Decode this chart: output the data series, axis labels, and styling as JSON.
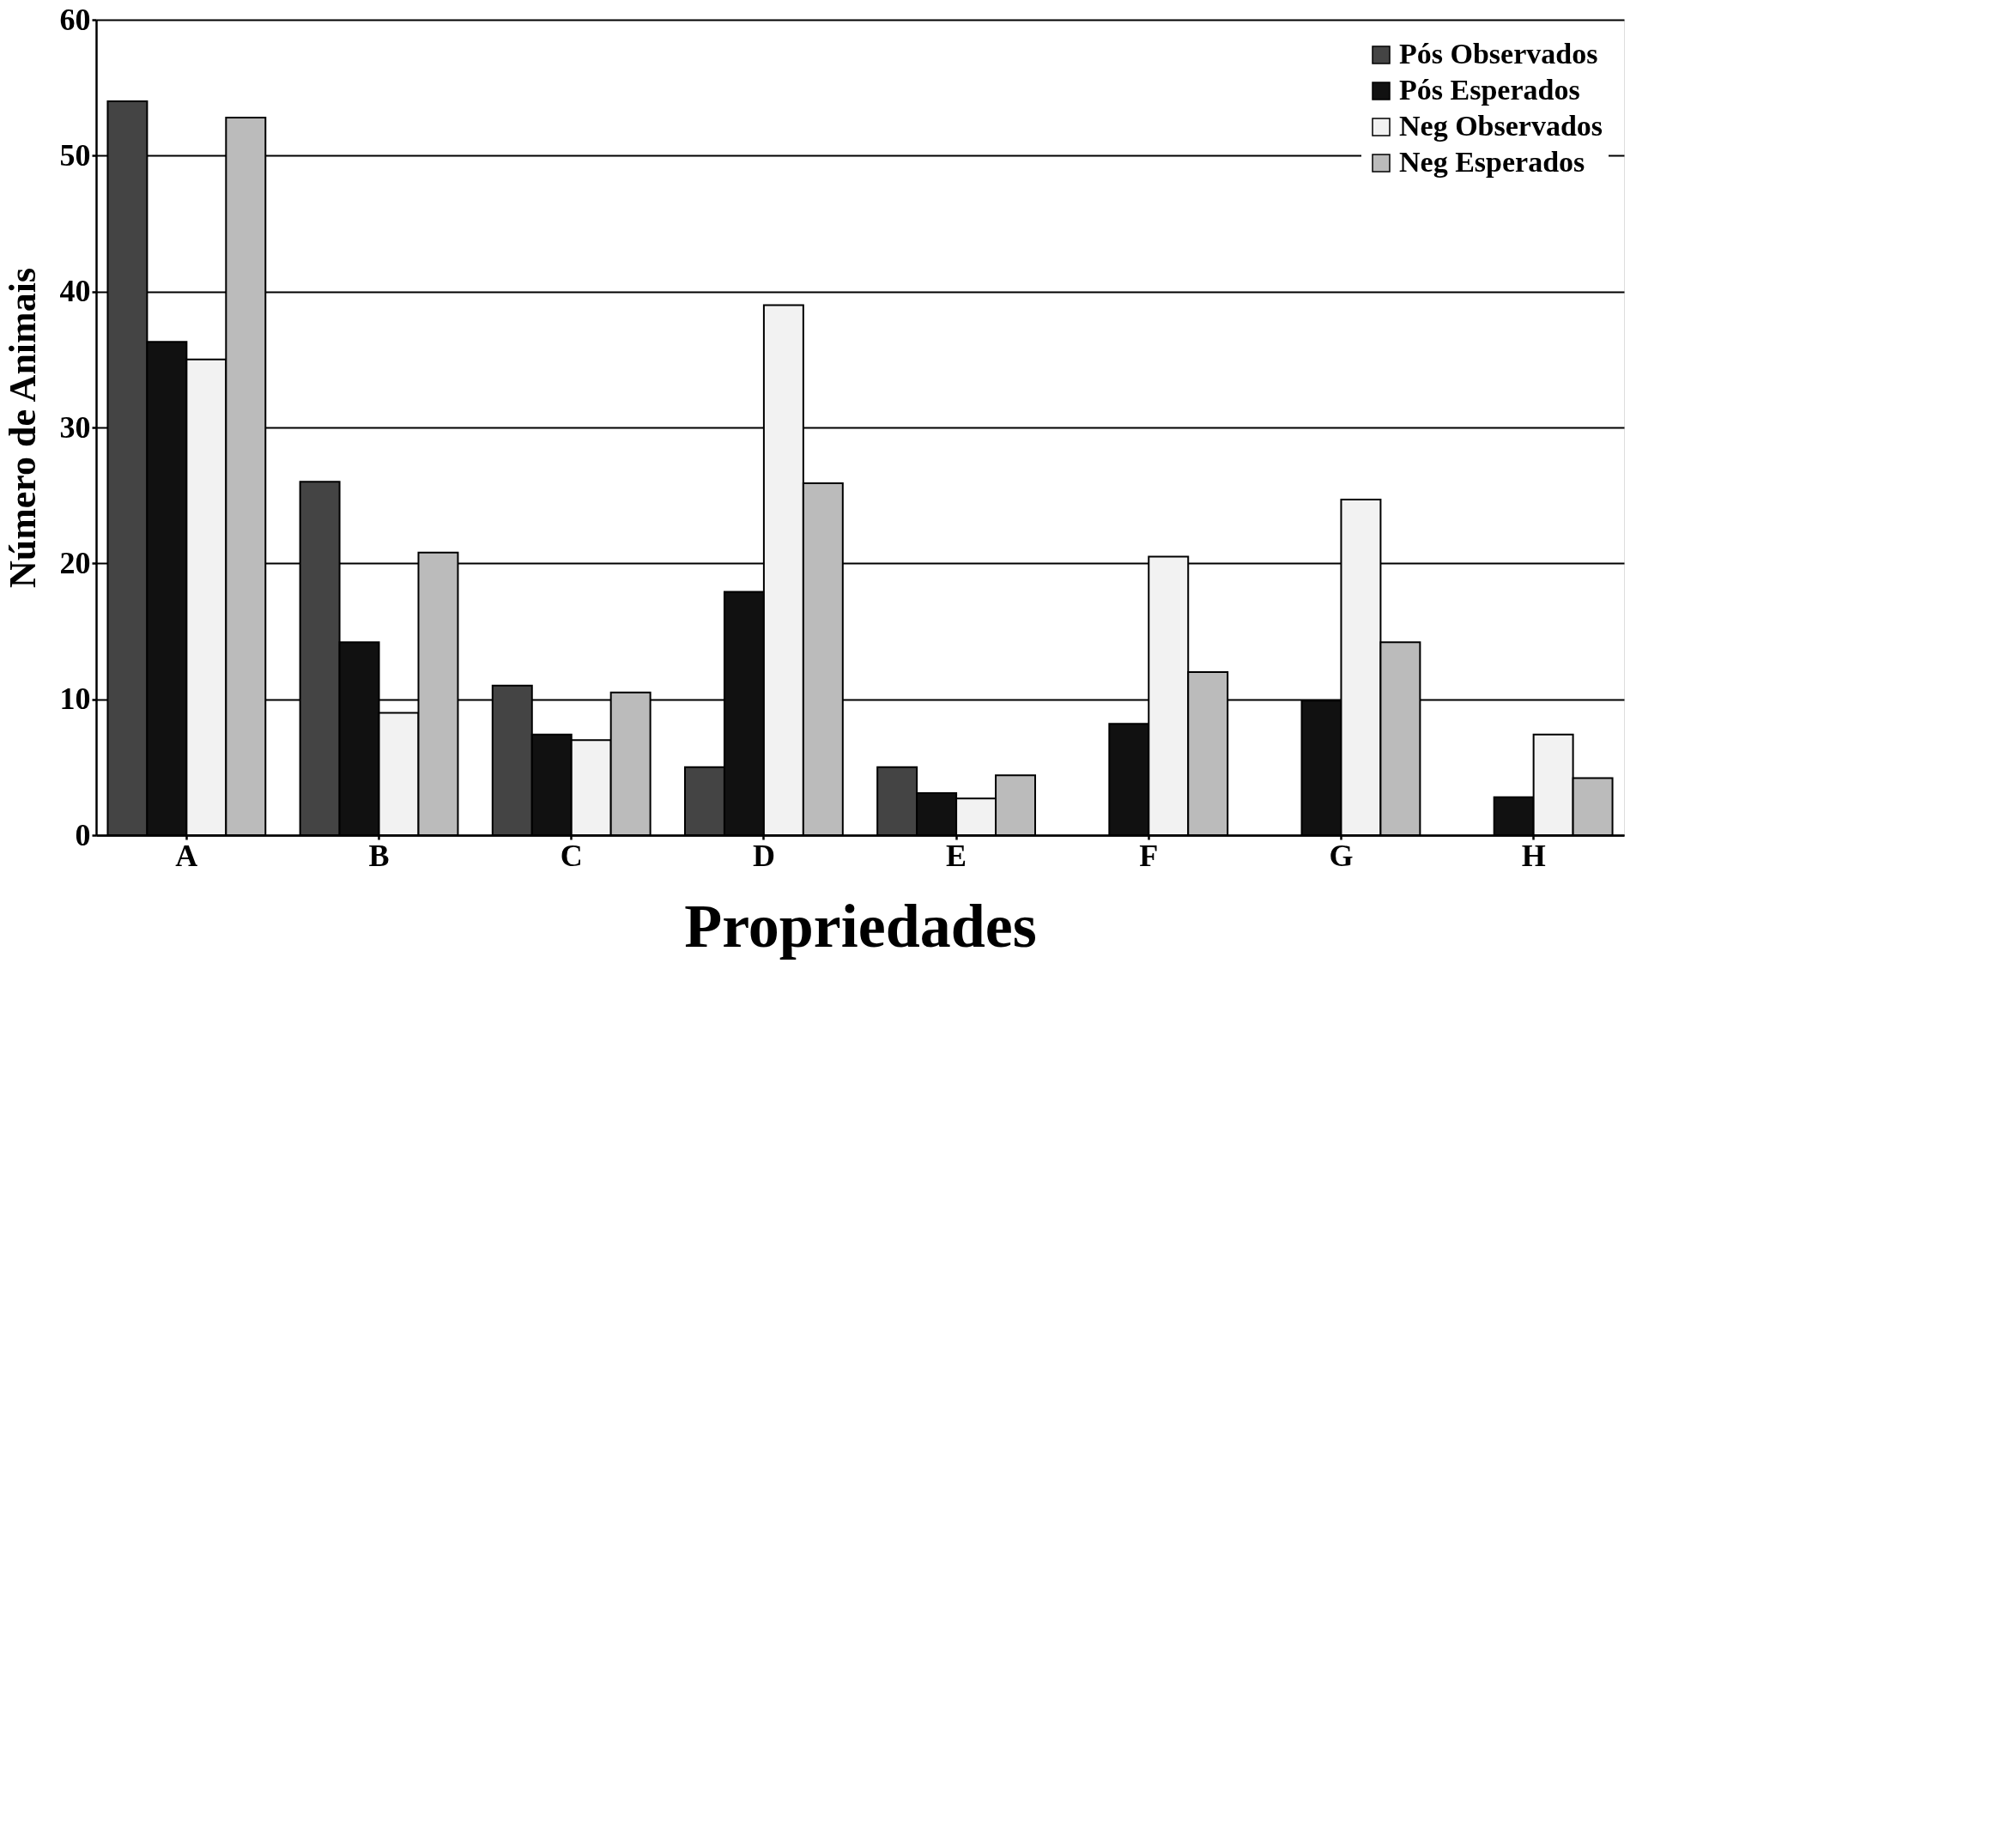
{
  "chart_data": {
    "type": "bar",
    "xlabel": "Propriedades",
    "ylabel": "Número de Animais",
    "categories": [
      "A",
      "B",
      "C",
      "D",
      "E",
      "F",
      "G",
      "H"
    ],
    "series": [
      {
        "name": "Pós Observados",
        "color": "#444444",
        "values": [
          54,
          26,
          11,
          5,
          5,
          null,
          null,
          null
        ]
      },
      {
        "name": "Pós Esperados",
        "color": "#111111",
        "values": [
          36.3,
          14.2,
          7.4,
          17.9,
          3.1,
          8.2,
          9.9,
          2.8
        ]
      },
      {
        "name": "Neg Observados",
        "color": "#f2f2f2",
        "values": [
          35,
          9,
          7,
          39,
          2.7,
          20.5,
          24.7,
          7.4
        ]
      },
      {
        "name": "Neg Esperados",
        "color": "#bbbbbb",
        "values": [
          52.8,
          20.8,
          10.5,
          25.9,
          4.4,
          12,
          14.2,
          4.2
        ]
      }
    ],
    "ylim": [
      0,
      60
    ],
    "yticks": [
      0,
      10,
      20,
      30,
      40,
      50,
      60
    ],
    "grid": "y",
    "legend": "top right"
  }
}
